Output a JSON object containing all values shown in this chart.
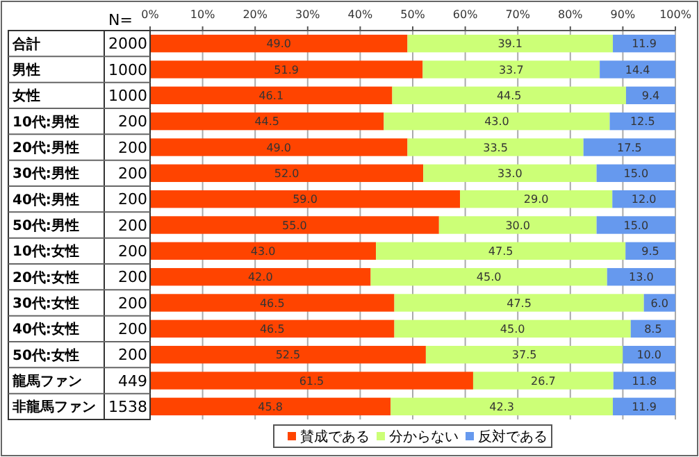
{
  "chart_data": {
    "type": "bar",
    "orientation": "horizontal",
    "stacked": true,
    "categories": [
      "合計",
      "男性",
      "女性",
      "10代:男性",
      "20代:男性",
      "30代:男性",
      "40代:男性",
      "50代:男性",
      "10代:女性",
      "20代:女性",
      "30代:女性",
      "40代:女性",
      "50代:女性",
      "龍馬ファン",
      "非龍馬ファン"
    ],
    "series": [
      {
        "name": "賛成である",
        "color": "#ff4400",
        "values": [
          49.0,
          51.9,
          46.1,
          44.5,
          49.0,
          52.0,
          59.0,
          55.0,
          43.0,
          42.0,
          46.5,
          46.5,
          52.5,
          61.5,
          45.8
        ],
        "value_labels": [
          "49.0",
          "51.9",
          "46.1",
          "44.5",
          "49.0",
          "52.0",
          "59.0",
          "55.0",
          "43.0",
          "42.0",
          "46.5",
          "46.5",
          "52.5",
          "61.5",
          "45.8"
        ]
      },
      {
        "name": "分からない",
        "color": "#ccff77",
        "values": [
          39.1,
          33.7,
          44.5,
          43.0,
          33.5,
          33.0,
          29.0,
          30.0,
          47.5,
          45.0,
          47.5,
          45.0,
          37.5,
          26.7,
          42.3
        ],
        "value_labels": [
          "39.1",
          "33.7",
          "44.5",
          "43.0",
          "33.5",
          "33.0",
          "29.0",
          "30.0",
          "47.5",
          "45.0",
          "47.5",
          "45.0",
          "37.5",
          "26.7",
          "42.3"
        ]
      },
      {
        "name": "反対である",
        "color": "#6699ee",
        "values": [
          11.9,
          14.4,
          9.4,
          12.5,
          17.5,
          15.0,
          12.0,
          15.0,
          9.5,
          13.0,
          6.0,
          8.5,
          10.0,
          11.8,
          11.9
        ],
        "value_labels": [
          "11.9",
          "14.4",
          "9.4",
          "12.5",
          "17.5",
          "15.0",
          "12.0",
          "15.0",
          "9.5",
          "13.0",
          "6.0",
          "8.5",
          "10.0",
          "11.8",
          "11.9"
        ]
      }
    ],
    "xlim": [
      0,
      100
    ],
    "xticks": [
      {
        "value": 0,
        "label": "0%"
      },
      {
        "value": 10,
        "label": "10%"
      },
      {
        "value": 20,
        "label": "20%"
      },
      {
        "value": 30,
        "label": "30%"
      },
      {
        "value": 40,
        "label": "40%"
      },
      {
        "value": 50,
        "label": "50%"
      },
      {
        "value": 60,
        "label": "60%"
      },
      {
        "value": 70,
        "label": "70%"
      },
      {
        "value": 80,
        "label": "80%"
      },
      {
        "value": 90,
        "label": "90%"
      },
      {
        "value": 100,
        "label": "100%"
      }
    ],
    "annotations": [
      "N=",
      "2000",
      "1000",
      "1000",
      "200",
      "200",
      "200",
      "200",
      "200",
      "200",
      "200",
      "200",
      "200",
      "200",
      "449",
      "1538"
    ],
    "grid": "x",
    "legend": "bottom"
  }
}
